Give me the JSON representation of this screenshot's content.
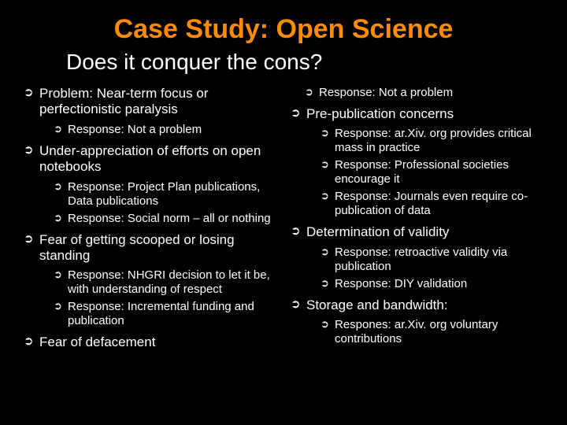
{
  "colors": {
    "background": "#000000",
    "title": "#ff8c00",
    "text": "#ffffff",
    "bullet": "#ffffff"
  },
  "typography": {
    "title_fontsize": 34,
    "subtitle_fontsize": 28,
    "level1_fontsize": 17,
    "level2_fontsize": 15,
    "font_family": "Arial"
  },
  "title": "Case Study: Open Science",
  "subtitle": "Does it conquer the cons?",
  "left": {
    "items": [
      {
        "text": "Problem: Near-term focus or perfectionistic paralysis",
        "sub": [
          {
            "text": "Response: Not a problem"
          }
        ]
      },
      {
        "text": "Under-appreciation of efforts on open notebooks",
        "sub": [
          {
            "text": "Response: Project Plan publications, Data publications"
          },
          {
            "text": "Response: Social norm – all or nothing"
          }
        ]
      },
      {
        "text": "Fear of getting scooped or losing standing",
        "sub": [
          {
            "text": "Response: NHGRI decision to let it be, with understanding of respect"
          },
          {
            "text": "Response: Incremental funding and publication"
          }
        ]
      },
      {
        "text": "Fear of defacement",
        "sub": []
      }
    ]
  },
  "right": {
    "items": [
      {
        "text": "",
        "sub": [
          {
            "text": "Response: Not a problem"
          }
        ]
      },
      {
        "text": "Pre-publication concerns",
        "sub": [
          {
            "text": "Response: ar.Xiv. org provides critical mass in practice"
          },
          {
            "text": "Response: Professional societies encourage it"
          },
          {
            "text": "Response: Journals even require co-publication of data"
          }
        ]
      },
      {
        "text": "Determination of validity",
        "sub": [
          {
            "text": "Response: retroactive validity via publication"
          },
          {
            "text": "Response: DIY validation"
          }
        ]
      },
      {
        "text": "Storage and bandwidth:",
        "sub": [
          {
            "text": "Respones: ar.Xiv. org voluntary contributions"
          }
        ]
      }
    ]
  }
}
